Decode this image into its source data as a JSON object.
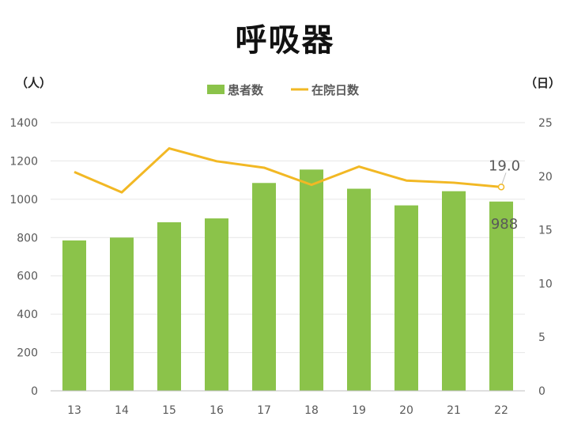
{
  "chart_data": {
    "type": "bar",
    "title": "呼吸器",
    "categories": [
      "13",
      "14",
      "15",
      "16",
      "17",
      "18",
      "19",
      "20",
      "21",
      "22"
    ],
    "series": [
      {
        "name": "患者数",
        "type": "bar",
        "axis": "left",
        "values": [
          785,
          800,
          880,
          900,
          1085,
          1155,
          1055,
          968,
          1042,
          988
        ]
      },
      {
        "name": "在院日数",
        "type": "line",
        "axis": "right",
        "values": [
          20.4,
          18.5,
          22.6,
          21.4,
          20.8,
          19.2,
          20.9,
          19.6,
          19.4,
          19.0
        ]
      }
    ],
    "y_left": {
      "unit_label": "（人）",
      "min": 0,
      "max": 1400,
      "step": 200,
      "ticks": [
        "0",
        "200",
        "400",
        "600",
        "800",
        "1000",
        "1200",
        "1400"
      ]
    },
    "y_right": {
      "unit_label": "（日）",
      "min": 0,
      "max": 25,
      "step": 5,
      "ticks": [
        "0",
        "5",
        "10",
        "15",
        "20",
        "25"
      ]
    },
    "data_labels": {
      "bar_last": "988",
      "line_last": "19.0"
    },
    "legend_position": "top-center",
    "grid": true,
    "colors": {
      "bar": "#8BC34A",
      "line": "#F2B824",
      "grid": "#E6E6E6",
      "axis": "#BFBFBF"
    }
  }
}
